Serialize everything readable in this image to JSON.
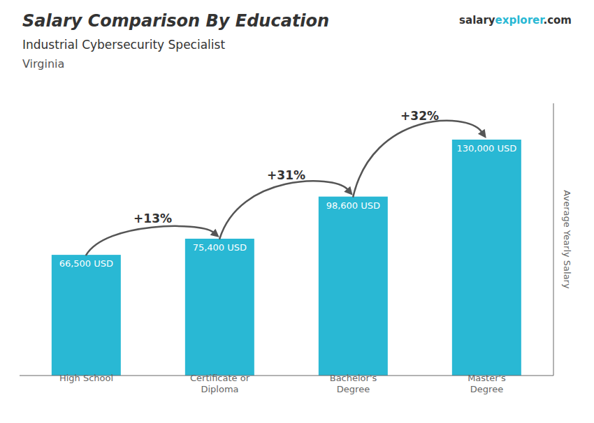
{
  "chart_data": {
    "type": "bar",
    "title": "Salary Comparison By Education",
    "subtitle": "Industrial Cybersecurity Specialist",
    "location": "Virginia",
    "brand": [
      "salary",
      "explorer",
      ".com"
    ],
    "ylabel": "Average Yearly Salary",
    "categories": [
      "High School",
      "Certificate or\nDiploma",
      "Bachelor's\nDegree",
      "Master's\nDegree"
    ],
    "values": [
      66500,
      75400,
      98600,
      130000
    ],
    "value_labels": [
      "66,500 USD",
      "75,400 USD",
      "98,600 USD",
      "130,000 USD"
    ],
    "data_labels": true,
    "annotations": [
      "+13%",
      "+31%",
      "+32%"
    ],
    "color": "#29b8d4",
    "ylim": [
      0,
      150000
    ],
    "grid": false,
    "tick_labels": "x"
  }
}
